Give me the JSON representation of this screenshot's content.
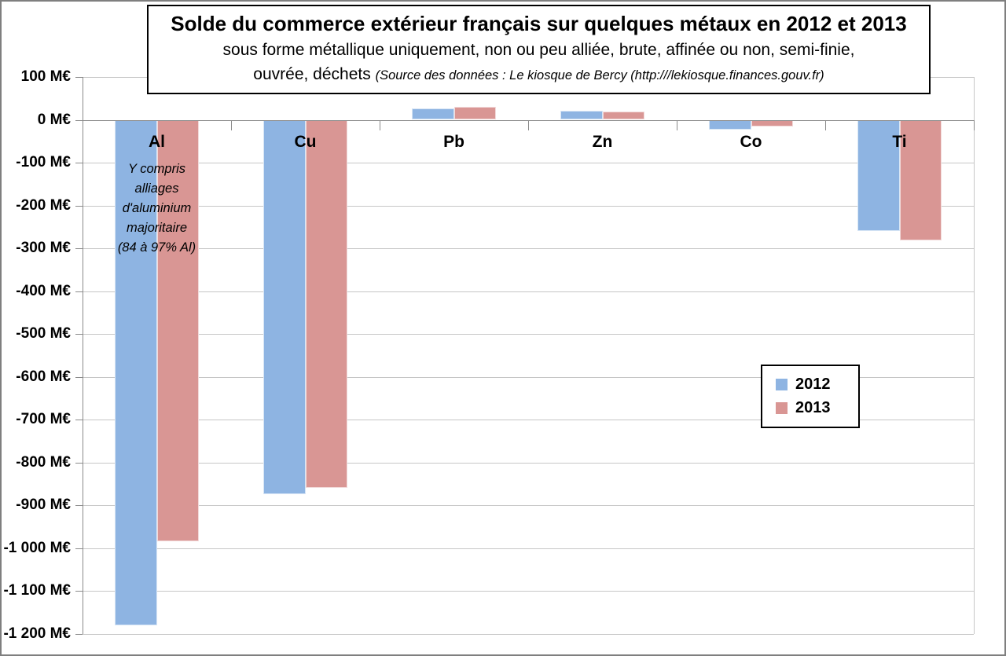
{
  "title": {
    "line1": "Solde du commerce extérieur français sur quelques métaux en 2012 et 2013",
    "line2": "sous forme métallique uniquement, non ou peu alliée, brute, affinée ou non, semi-finie,",
    "line3_normal": "ouvrée, déchets",
    "line3_source": "(Source des données : Le kiosque de Bercy (http:///lekiosque.finances.gouv.fr)"
  },
  "legend": {
    "items": [
      {
        "label": "2012",
        "color": "#8EB4E2"
      },
      {
        "label": "2013",
        "color": "#D99694"
      }
    ]
  },
  "chart_data": {
    "type": "bar",
    "title": "Solde du commerce extérieur français sur quelques métaux en 2012 et 2013",
    "categories": [
      "Al",
      "Cu",
      "Pb",
      "Zn",
      "Co",
      "Ti"
    ],
    "series": [
      {
        "name": "2012",
        "color": "#8EB4E2",
        "values": [
          -1180,
          -875,
          27,
          22,
          -23,
          -260
        ]
      },
      {
        "name": "2013",
        "color": "#D99694",
        "values": [
          -985,
          -860,
          31,
          20,
          -15,
          -282
        ]
      }
    ],
    "unit": "M€",
    "ylim": [
      -1200,
      100
    ],
    "ytick_step": 100,
    "y_tick_labels": [
      "100 M€",
      "0 M€",
      "-100 M€",
      "-200 M€",
      "-300 M€",
      "-400 M€",
      "-500 M€",
      "-600 M€",
      "-700 M€",
      "-800 M€",
      "-900 M€",
      "-1 000 M€",
      "-1 100 M€",
      "-1 200 M€"
    ],
    "grid": true,
    "legend_position": "center-right",
    "annotation": {
      "category": "Al",
      "lines": [
        "Y compris",
        "alliages",
        "d'aluminium",
        "majoritaire",
        "(84 à 97% Al)"
      ]
    }
  }
}
